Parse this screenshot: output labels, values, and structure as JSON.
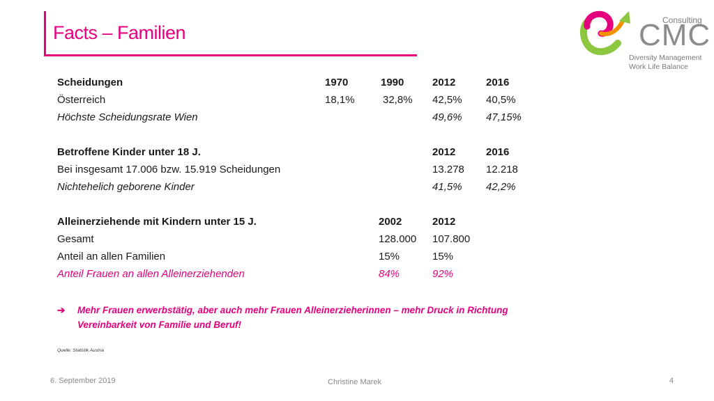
{
  "title": "Facts – Familien",
  "logo": {
    "consulting": "Consulting",
    "brand": "CMC",
    "tagline1": "Diversity Management",
    "tagline2": "Work Life Balance",
    "colors": {
      "pink": "#e5007e",
      "green": "#8dc63f",
      "gray": "#8c8c8c"
    }
  },
  "scheidungen": {
    "header": {
      "label": "Scheidungen",
      "y1970": "1970",
      "y1990": "1990",
      "y2012": "2012",
      "y2016": "2016"
    },
    "oesterreich": {
      "label": "Österreich",
      "y1970": "18,1%",
      "y1990": "32,8%",
      "y2012": "42,5%",
      "y2016": "40,5%"
    },
    "wien": {
      "label": "Höchste Scheidungsrate Wien",
      "y2012": "49,6%",
      "y2016": "47,15%"
    }
  },
  "kinder": {
    "header": {
      "label": "Betroffene Kinder unter 18 J.",
      "y2012": "2012",
      "y2016": "2016"
    },
    "insgesamt": {
      "label": "Bei insgesamt 17.006 bzw. 15.919 Scheidungen",
      "y2012": "13.278",
      "y2016": "12.218"
    },
    "nichtehelich": {
      "label": "Nichtehelich geborene Kinder",
      "y2012": "41,5%",
      "y2016": "42,2%"
    }
  },
  "alleinerziehende": {
    "header": {
      "label": "Alleinerziehende mit Kindern unter 15 J.",
      "y2002": "2002",
      "y2012": "2012"
    },
    "gesamt": {
      "label": "Gesamt",
      "y2002": "128.000",
      "y2012": "107.800"
    },
    "anteil": {
      "label": "Anteil an allen Familien",
      "y2002": "15%",
      "y2012": "15%"
    },
    "frauen": {
      "label": "Anteil Frauen an allen Alleinerziehenden",
      "y2002": "84%",
      "y2012": "92%"
    }
  },
  "conclusion": {
    "arrow": "➔",
    "line1": "Mehr Frauen erwerbstätig, aber auch mehr Frauen Alleinerzieherinnen – mehr Druck in Richtung",
    "line2": "Vereinbarkeit von Familie und Beruf!"
  },
  "source": "Quelle: Statistik Austria",
  "footer": {
    "date": "6. September 2019",
    "author": "Christine Marek",
    "page": "4"
  }
}
